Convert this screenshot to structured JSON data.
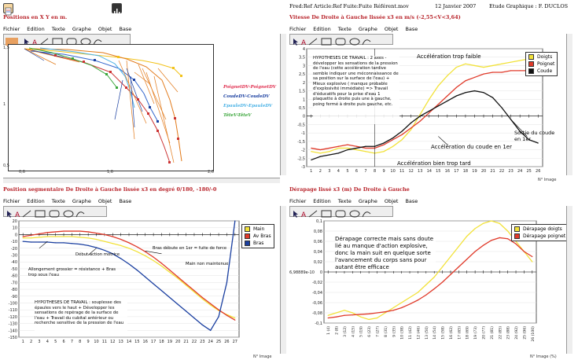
{
  "header": {
    "file_ref": "Fred:Ref Article:Ref Fuite:Fuite Référent.mov",
    "date": "12 Janvier 2007",
    "study": "Etude Graphique :  F. DUCLOS"
  },
  "menu": [
    "Fichier",
    "Edition",
    "Texte",
    "Graphe",
    "Objet",
    "Base"
  ],
  "panel_xy": {
    "title": "Positions en X Y en m.",
    "axis": {
      "y_top": "1,5",
      "y_mid": "1",
      "y_bot": "0,5",
      "x_left": "0,6",
      "x_mid": "1,6",
      "x_right": "2,6"
    },
    "legend": [
      "PoignetDV-PoignetDV",
      "CoudeDV-CoudeDV",
      "EpauleDV-EpauleDV",
      "TêteV-TêteV"
    ],
    "legend_colors": [
      "#e03050",
      "#1a3fa0",
      "#4db3e6",
      "#3aa63a"
    ]
  },
  "panel_speed": {
    "title": "Vitesse De Droite à Gauche lissée x3 en m/s (-2,55<V<3,64)",
    "legend": [
      "Doigts",
      "Poignet",
      "Coude"
    ],
    "legend_colors": [
      "#f2e23a",
      "#e03a2a",
      "#111111"
    ],
    "note": "HYPOTHESES DE TRAVAIL : 2 axes - développer les sensations de la pression de l'eau (cette accélération tardive semble indiquer une méconnaissance de sa position sur la surface de l'eau) + Mieux explosive ( manque probable d'explosivité immédiate) => Travail d'éducatifs pour la prise d'eau 1 plaquette à droite puis une à gauche, poing fermé à droite puis gauche, etc.",
    "annotations": [
      "Accélération trop faible",
      "Sortie du coude en 1er",
      "Accélération du coude en 1er",
      "Accélération bien trop tard"
    ],
    "x_caption": "N° Image",
    "chart_data": {
      "type": "line",
      "x": [
        1,
        2,
        3,
        4,
        5,
        6,
        7,
        8,
        9,
        10,
        11,
        12,
        13,
        14,
        15,
        16,
        17,
        18,
        19,
        20,
        21,
        22,
        23,
        24,
        25,
        26
      ],
      "ylim": [
        -3,
        4
      ],
      "yticks": [
        -3,
        -2.5,
        -2,
        -1.5,
        -1,
        -0.5,
        0,
        0.5,
        1,
        1.5,
        2,
        2.5,
        3,
        3.5,
        4
      ],
      "series": [
        {
          "name": "Doigts",
          "values": [
            -2.1,
            -2.2,
            -2.1,
            -1.9,
            -1.9,
            -2.0,
            -2.1,
            -2.2,
            -2.1,
            -1.8,
            -1.4,
            -0.8,
            0.1,
            1.0,
            1.8,
            2.4,
            2.9,
            3.1,
            3.0,
            2.9,
            3.0,
            3.1,
            3.2,
            3.3,
            3.4,
            3.5
          ]
        },
        {
          "name": "Poignet",
          "values": [
            -1.9,
            -2.0,
            -1.9,
            -1.8,
            -1.7,
            -1.8,
            -1.9,
            -1.9,
            -1.7,
            -1.4,
            -1.1,
            -0.7,
            -0.3,
            0.2,
            0.7,
            1.2,
            1.7,
            2.1,
            2.3,
            2.5,
            2.6,
            2.6,
            2.7,
            2.7,
            2.7,
            2.6
          ]
        },
        {
          "name": "Coude",
          "values": [
            -2.6,
            -2.4,
            -2.3,
            -2.2,
            -2.0,
            -1.9,
            -1.8,
            -1.8,
            -1.6,
            -1.3,
            -0.9,
            -0.4,
            0.0,
            0.3,
            0.6,
            0.9,
            1.2,
            1.4,
            1.5,
            1.4,
            1.1,
            0.5,
            -0.2,
            -0.9,
            -1.4,
            -1.6
          ]
        }
      ]
    }
  },
  "panel_angle": {
    "title": "Position segmentaire De Droite à Gauche lissée x3 en degré   0/180, -180/-0",
    "legend": [
      "Main",
      "Av Bras",
      "Bras"
    ],
    "legend_colors": [
      "#f2e23a",
      "#e03a2a",
      "#1a3fa0"
    ],
    "annotations": [
      "Bras débute en 1er = fuite de force",
      "Début action motrice",
      "Main non maintenue",
      "Allongement grossier = résistance + Bras trop sous l'eau"
    ],
    "note": "HYPOTHESES DE TRAVAIL : souplesse des épaules vers le haut + Développer les sensations de repérage de la surface de l'eau + Travail du cubital antérieur ou recherche sensitive de la pression de l'eau",
    "x_caption": "N° Image",
    "chart_data": {
      "type": "line",
      "x": [
        1,
        2,
        3,
        4,
        5,
        6,
        7,
        8,
        9,
        10,
        11,
        12,
        13,
        14,
        15,
        16,
        17,
        18,
        19,
        20,
        21,
        22,
        23,
        24,
        25,
        26,
        27
      ],
      "ylim": [
        -150,
        20
      ],
      "yticks": [
        -150,
        -140,
        -130,
        -120,
        -110,
        -100,
        -90,
        -80,
        -70,
        -60,
        -50,
        -40,
        -30,
        -20,
        -10,
        0,
        10,
        20
      ],
      "series": [
        {
          "name": "Main",
          "values": [
            -5,
            -5,
            -4,
            -3,
            -3,
            -3,
            -3,
            -4,
            -5,
            -7,
            -10,
            -13,
            -16,
            -20,
            -25,
            -31,
            -38,
            -46,
            -55,
            -64,
            -74,
            -84,
            -94,
            -103,
            -111,
            -117,
            -122
          ]
        },
        {
          "name": "Av Bras",
          "values": [
            -3,
            -1,
            1,
            3,
            4,
            5,
            5,
            5,
            4,
            2,
            0,
            -3,
            -7,
            -12,
            -18,
            -25,
            -33,
            -42,
            -52,
            -62,
            -72,
            -82,
            -92,
            -101,
            -110,
            -118,
            -125
          ]
        },
        {
          "name": "Bras",
          "values": [
            -10,
            -11,
            -11,
            -11,
            -12,
            -12,
            -13,
            -14,
            -16,
            -19,
            -23,
            -28,
            -35,
            -43,
            -52,
            -62,
            -72,
            -82,
            -92,
            -102,
            -112,
            -122,
            -132,
            -140,
            -120,
            -70,
            20
          ]
        }
      ]
    }
  },
  "panel_slip": {
    "title": "Dérapage lissé x3 (m)   De Droite à Gauche",
    "legend": [
      "Dérapage doigts",
      "Dérapage poignet"
    ],
    "legend_colors": [
      "#f2e23a",
      "#e03a2a"
    ],
    "note": "Dérapage correcte mais sans doute lié au manque d'action explosive, donc la main suit en quelque sorte l'avancement du corps sans pour autant être efficace",
    "y_special_label": "6,98889e-10",
    "x_caption": "N° Image (%)",
    "chart_data": {
      "type": "line",
      "x": [
        "1 (4)",
        "2 (8)",
        "3 (12)",
        "4 (15)",
        "5 (19)",
        "6 (23)",
        "7 (27)",
        "8 (31)",
        "9 (35)",
        "10 (38)",
        "11 (42)",
        "12 (46)",
        "13 (50)",
        "14 (54)",
        "15 (58)",
        "16 (62)",
        "17 (65)",
        "18 (69)",
        "19 (73)",
        "20 (77)",
        "21 (81)",
        "22 (85)",
        "23 (88)",
        "24 (92)",
        "25 (96)",
        "26 (100)"
      ],
      "ylim": [
        -0.1,
        0.1
      ],
      "yticks": [
        -0.1,
        -0.08,
        -0.06,
        -0.04,
        -0.02,
        0,
        0.02,
        0.04,
        0.06,
        0.08,
        0.1
      ],
      "series": [
        {
          "name": "Dérapage doigts",
          "values": [
            -0.085,
            -0.08,
            -0.075,
            -0.08,
            -0.088,
            -0.093,
            -0.09,
            -0.08,
            -0.07,
            -0.06,
            -0.05,
            -0.04,
            -0.025,
            -0.01,
            0.01,
            0.03,
            0.05,
            0.07,
            0.085,
            0.095,
            0.1,
            0.095,
            0.08,
            0.06,
            0.04,
            0.02
          ]
        },
        {
          "name": "Dérapage poignet",
          "values": [
            -0.09,
            -0.088,
            -0.085,
            -0.084,
            -0.083,
            -0.082,
            -0.08,
            -0.078,
            -0.075,
            -0.07,
            -0.063,
            -0.055,
            -0.045,
            -0.033,
            -0.02,
            -0.005,
            0.01,
            0.025,
            0.04,
            0.052,
            0.062,
            0.067,
            0.065,
            0.055,
            0.04,
            0.03
          ]
        }
      ]
    }
  }
}
